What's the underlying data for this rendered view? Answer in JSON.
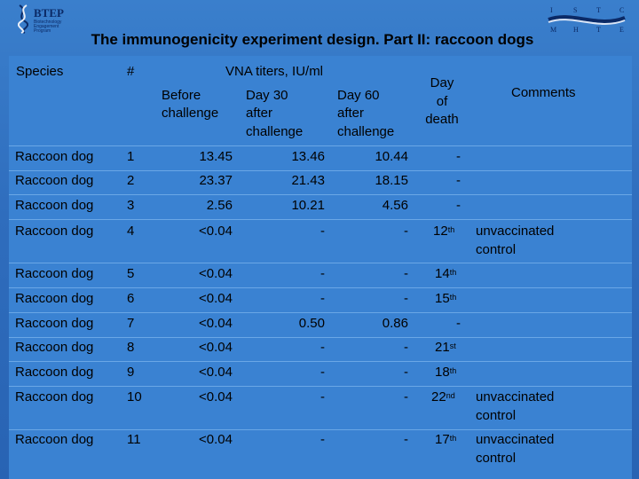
{
  "logo_left": {
    "name": "BTEP",
    "subtitle_lines": [
      "Biotechnology",
      "Engagement",
      "Program"
    ]
  },
  "logo_right": {
    "letters_top": [
      "I",
      "S",
      "T",
      "C"
    ],
    "letters_bottom": [
      "M",
      "H",
      "T",
      "E"
    ]
  },
  "title": "The immunogenicity experiment design. Part II: raccoon dogs",
  "headers": {
    "species": "Species",
    "num": "#",
    "vna": "VNA titers, IU/ml",
    "before": [
      "Before",
      "challenge"
    ],
    "day30": [
      "Day 30",
      "after",
      "challenge"
    ],
    "day60": [
      "Day 60",
      "after",
      "challenge"
    ],
    "death": [
      "Day",
      "of",
      "death"
    ],
    "comments": "Comments"
  },
  "rows": [
    {
      "species": "Raccoon dog",
      "num": "1",
      "before": "13.45",
      "day30": "13.46",
      "day60": "10.44",
      "death": "-",
      "death_sup": "",
      "comment": []
    },
    {
      "species": "Raccoon dog",
      "num": "2",
      "before": "23.37",
      "day30": "21.43",
      "day60": "18.15",
      "death": "-",
      "death_sup": "",
      "comment": []
    },
    {
      "species": "Raccoon dog",
      "num": "3",
      "before": "2.56",
      "day30": "10.21",
      "day60": "4.56",
      "death": "-",
      "death_sup": "",
      "comment": []
    },
    {
      "species": "Raccoon dog",
      "num": "4",
      "before": "<0.04",
      "day30": "-",
      "day60": "-",
      "death": "12",
      "death_sup": "th",
      "comment": [
        "unvaccinated",
        "control"
      ]
    },
    {
      "species": "Raccoon dog",
      "num": "5",
      "before": "<0.04",
      "day30": "-",
      "day60": "-",
      "death": "14",
      "death_sup": "th",
      "comment": []
    },
    {
      "species": "Raccoon dog",
      "num": "6",
      "before": "<0.04",
      "day30": "-",
      "day60": "-",
      "death": "15",
      "death_sup": "th",
      "comment": []
    },
    {
      "species": "Raccoon dog",
      "num": "7",
      "before": "<0.04",
      "day30": "0.50",
      "day60": "0.86",
      "death": "-",
      "death_sup": "",
      "comment": []
    },
    {
      "species": "Raccoon dog",
      "num": "8",
      "before": "<0.04",
      "day30": "-",
      "day60": "-",
      "death": "21",
      "death_sup": "st",
      "comment": []
    },
    {
      "species": "Raccoon dog",
      "num": "9",
      "before": "<0.04",
      "day30": "-",
      "day60": "-",
      "death": "18",
      "death_sup": "th",
      "comment": []
    },
    {
      "species": "Raccoon dog",
      "num": "10",
      "before": "<0.04",
      "day30": "-",
      "day60": "-",
      "death": "22",
      "death_sup": "nd",
      "comment": [
        "unvaccinated",
        "control"
      ]
    },
    {
      "species": "Raccoon dog",
      "num": "11",
      "before": "<0.04",
      "day30": "-",
      "day60": "-",
      "death": "17",
      "death_sup": "th",
      "comment": [
        "unvaccinated",
        "control"
      ]
    }
  ]
}
